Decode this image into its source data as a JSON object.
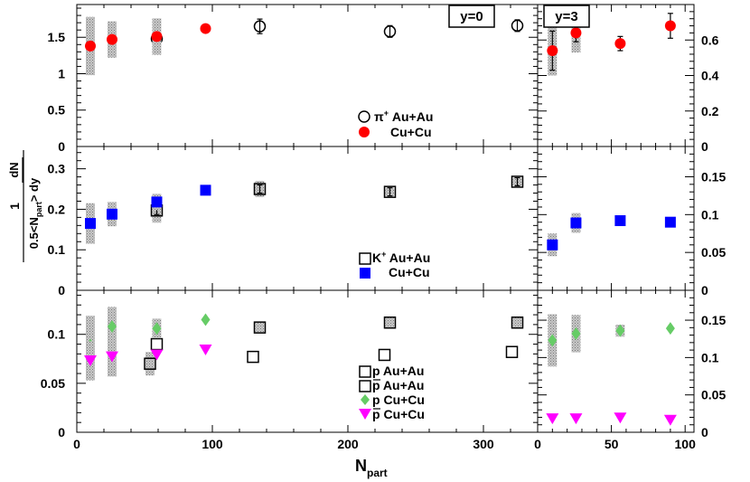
{
  "figure": {
    "ylabel_numerator": "dN",
    "ylabel_fraction_one": "1",
    "ylabel_denominator_left": "0.5<N",
    "ylabel_denominator_sub": "part",
    "ylabel_denominator_right": "> dy",
    "xlabel_main": "N",
    "xlabel_sub": "part"
  },
  "chart_data": [
    {
      "type": "scatter",
      "panel": "left-top",
      "box_label": "",
      "xlim": [
        0,
        340
      ],
      "ylim": [
        0,
        1.95
      ],
      "xticks": [
        0,
        100,
        200,
        300
      ],
      "yticks": [
        0,
        0.5,
        1,
        1.5
      ],
      "ytick_labels": [
        "0",
        "0.5",
        "1",
        "1.5"
      ],
      "series": [
        {
          "name": "Au+Au",
          "label_prefix": "π",
          "label_sup": "+",
          "label_rest": " Au+Au",
          "marker": "open-circle",
          "color": "#000000",
          "x": [
            59,
            135,
            231,
            325
          ],
          "y": [
            1.48,
            1.65,
            1.58,
            1.66
          ],
          "err": [
            0.04,
            0.1,
            0.08,
            0.08
          ],
          "sys": [
            0.22,
            0,
            0,
            0
          ]
        },
        {
          "name": "Cu+Cu",
          "label": "Cu+Cu",
          "marker": "filled-circle",
          "color": "#ff0000",
          "x": [
            10,
            26,
            59,
            95
          ],
          "y": [
            1.38,
            1.47,
            1.51,
            1.62
          ],
          "err": [
            0,
            0,
            0,
            0.05
          ],
          "sys": [
            0.4,
            0.25,
            0.25,
            0
          ]
        }
      ]
    },
    {
      "type": "scatter",
      "panel": "right-top",
      "box_label": "y=3",
      "xlim": [
        0,
        106
      ],
      "ylim": [
        0,
        0.8
      ],
      "xticks": [
        0,
        50,
        100
      ],
      "yticks": [
        0,
        0.2,
        0.4,
        0.6
      ],
      "ytick_labels": [
        "0",
        "0.2",
        "0.4",
        "0.6"
      ],
      "series": [
        {
          "name": "Cu+Cu",
          "marker": "filled-circle",
          "color": "#ff0000",
          "x": [
            10,
            26,
            56,
            90
          ],
          "y": [
            0.54,
            0.64,
            0.58,
            0.68
          ],
          "err": [
            0.11,
            0.05,
            0.04,
            0.07
          ],
          "sys": [
            0.14,
            0.11,
            0,
            0
          ]
        }
      ]
    },
    {
      "type": "scatter",
      "panel": "left-middle",
      "box_label": "",
      "xlim": [
        0,
        340
      ],
      "ylim": [
        0,
        0.355
      ],
      "xticks": [
        0,
        100,
        200,
        300
      ],
      "yticks": [
        0,
        0.1,
        0.2,
        0.3
      ],
      "ytick_labels": [
        "0",
        "0.1",
        "0.2",
        "0.3"
      ],
      "series": [
        {
          "name": "Au+Au",
          "label_prefix": "K",
          "label_sup": "+",
          "label_rest": " Au+Au",
          "marker": "open-square",
          "color": "#000000",
          "x": [
            59,
            135,
            231,
            325
          ],
          "y": [
            0.197,
            0.25,
            0.243,
            0.268
          ],
          "err": [
            0.01,
            0.01,
            0.01,
            0.01
          ],
          "sys": [
            0.03,
            0.02,
            0.01,
            0.01
          ]
        },
        {
          "name": "Cu+Cu",
          "label": "Cu+Cu",
          "marker": "filled-square",
          "color": "#0000ff",
          "x": [
            10,
            26,
            59,
            95
          ],
          "y": [
            0.165,
            0.188,
            0.218,
            0.247
          ],
          "err": [
            0,
            0,
            0,
            0
          ],
          "sys": [
            0.05,
            0.03,
            0.02,
            0
          ]
        }
      ]
    },
    {
      "type": "scatter",
      "panel": "right-middle",
      "box_label": "",
      "xlim": [
        0,
        106
      ],
      "ylim": [
        0,
        0.19
      ],
      "xticks": [
        0,
        50,
        100
      ],
      "yticks": [
        0,
        0.05,
        0.1,
        0.15
      ],
      "ytick_labels": [
        "0",
        "0.05",
        "0.1",
        "0.15"
      ],
      "series": [
        {
          "name": "Cu+Cu",
          "marker": "filled-square",
          "color": "#0000ff",
          "x": [
            10,
            26,
            56,
            90
          ],
          "y": [
            0.06,
            0.089,
            0.092,
            0.09
          ],
          "err": [
            0,
            0,
            0,
            0
          ],
          "sys": [
            0.015,
            0.013,
            0,
            0
          ]
        }
      ]
    },
    {
      "type": "scatter",
      "panel": "left-bottom",
      "box_label": "",
      "xlim": [
        0,
        340
      ],
      "ylim": [
        0,
        0.145
      ],
      "xticks": [
        0,
        100,
        200,
        300
      ],
      "yticks": [
        0,
        0.05,
        0.1
      ],
      "ytick_labels": [
        "0",
        "0.05",
        "0.1"
      ],
      "series": [
        {
          "name": "p Au+Au",
          "label_prefix": "p",
          "label_rest": " Au+Au",
          "marker": "open-square",
          "color": "#000000",
          "x": [
            59,
            135,
            231,
            325
          ],
          "y": [
            0.09,
            0.107,
            0.112,
            0.112
          ],
          "err": [
            0,
            0,
            0,
            0
          ],
          "sys": [
            0,
            0.005,
            0.005,
            0.005
          ]
        },
        {
          "name": "pbar Au+Au",
          "label_prefix": "p",
          "label_bar": true,
          "label_rest": " Au+Au",
          "marker": "open-square",
          "color": "#000000",
          "x": [
            54,
            130,
            227,
            321
          ],
          "y": [
            0.07,
            0.077,
            0.079,
            0.082
          ],
          "err": [
            0,
            0,
            0,
            0
          ],
          "sys": [
            0.012,
            0,
            0,
            0
          ]
        },
        {
          "name": "p Cu+Cu",
          "label_prefix": "p",
          "label_rest": "  Cu+Cu",
          "marker": "filled-diamond",
          "color": "#66cc66",
          "x": [
            10,
            26,
            59,
            95
          ],
          "y": [
            0.089,
            0.108,
            0.106,
            0.115
          ],
          "err": [
            0,
            0,
            0,
            0
          ],
          "sys": [
            0.03,
            0.02,
            0.01,
            0
          ]
        },
        {
          "name": "pbar Cu+Cu",
          "label_prefix": "p",
          "label_bar": true,
          "label_rest": "  Cu+Cu",
          "marker": "filled-triangle-down",
          "color": "#ff00ff",
          "x": [
            10,
            26,
            59,
            95
          ],
          "y": [
            0.073,
            0.077,
            0.079,
            0.084
          ],
          "err": [
            0,
            0,
            0,
            0
          ],
          "sys": [
            0.02,
            0.02,
            0,
            0
          ]
        }
      ]
    },
    {
      "type": "scatter",
      "panel": "right-bottom",
      "box_label": "",
      "xlim": [
        0,
        106
      ],
      "ylim": [
        0,
        0.19
      ],
      "xticks": [
        0,
        50,
        100
      ],
      "yticks": [
        0,
        0.05,
        0.1,
        0.15
      ],
      "ytick_labels": [
        "0",
        "0.05",
        "0.1",
        "0.15"
      ],
      "xtick_labels": [
        "0",
        "50",
        "100"
      ],
      "series": [
        {
          "name": "p Cu+Cu",
          "marker": "filled-diamond",
          "color": "#66cc66",
          "x": [
            10,
            26,
            56,
            90
          ],
          "y": [
            0.123,
            0.132,
            0.136,
            0.139
          ],
          "err": [
            0,
            0,
            0,
            0
          ],
          "sys": [
            0.035,
            0.025,
            0.008,
            0
          ]
        },
        {
          "name": "pbar Cu+Cu",
          "marker": "filled-triangle-down",
          "color": "#ff00ff",
          "x": [
            10,
            26,
            56,
            90
          ],
          "y": [
            0.018,
            0.018,
            0.019,
            0.016
          ],
          "err": [
            0,
            0,
            0,
            0
          ],
          "sys": [
            0,
            0,
            0,
            0
          ]
        }
      ]
    }
  ],
  "top_left_box_label": "y=0",
  "left_xtick_labels": [
    "0",
    "100",
    "200",
    "300"
  ]
}
